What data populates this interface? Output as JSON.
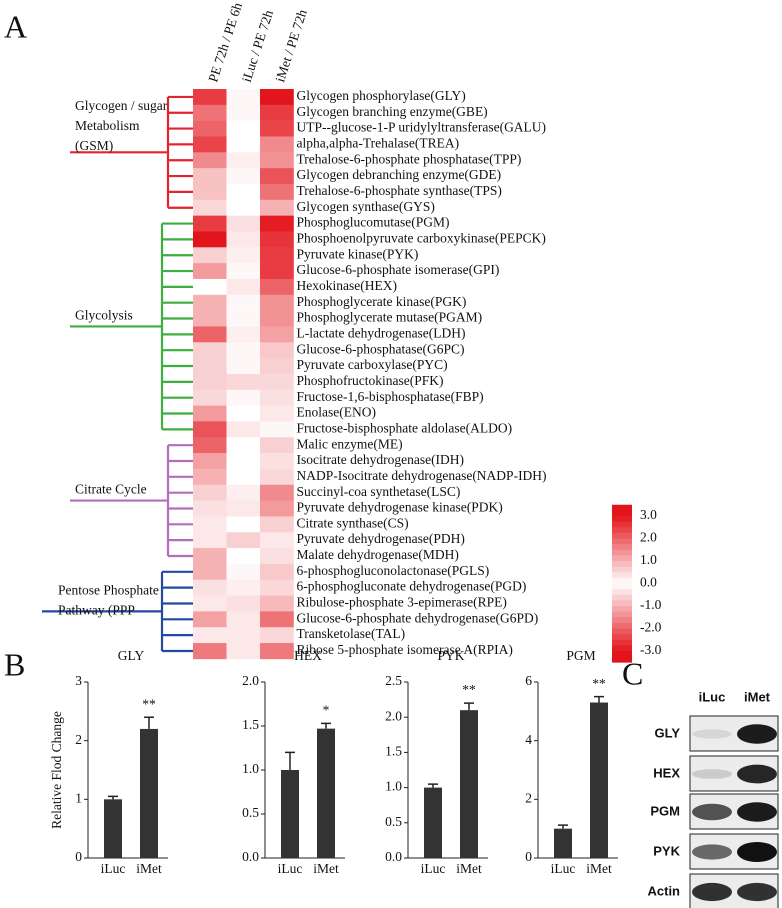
{
  "panel_labels": [
    "A",
    "B",
    "C"
  ],
  "chart_data": [
    {
      "type": "heatmap",
      "columns": [
        "PE 72h / PE 6h",
        "iLuc / PE 72h",
        "iMet / PE 72h"
      ],
      "clim": [
        -3,
        3
      ],
      "colorbar_ticks": [
        {
          "value": 3,
          "label": "3.0"
        },
        {
          "value": 2,
          "label": "2.0"
        },
        {
          "value": 1,
          "label": "1.0"
        },
        {
          "value": 0,
          "label": "0.0"
        },
        {
          "value": -1,
          "label": "-1.0"
        },
        {
          "value": -2,
          "label": "-2.0"
        },
        {
          "value": -3,
          "label": "-3.0"
        }
      ],
      "groups": [
        {
          "label_lines": [
            "Glycogen / sugar",
            "Metabolism",
            "(GSM)"
          ],
          "color": "#e0262b",
          "rows": [
            {
              "label": "Glycogen phosphorylase(GLY)",
              "values": [
                -2.5,
                0.1,
                3.0
              ]
            },
            {
              "label": "Glycogen branching enzyme(GBE)",
              "values": [
                -1.8,
                0.1,
                2.5
              ]
            },
            {
              "label": "UTP--glucose-1-P uridylyltransferase(GALU)",
              "values": [
                -2.0,
                0,
                2.4
              ]
            },
            {
              "label": "alpha,alpha-Trehalase(TREA)",
              "values": [
                -2.4,
                0,
                1.5
              ]
            },
            {
              "label": "Trehalose-6-phosphate phosphatase(TPP)",
              "values": [
                -1.5,
                0.2,
                1.4
              ]
            },
            {
              "label": "Glycogen debranching enzyme(GDE)",
              "values": [
                -0.8,
                0.1,
                2.2
              ]
            },
            {
              "label": "Trehalose-6-phosphate synthase(TPS)",
              "values": [
                -0.8,
                0,
                1.8
              ]
            },
            {
              "label": "Glycogen synthase(GYS)",
              "values": [
                -0.5,
                0,
                1.0
              ]
            }
          ]
        },
        {
          "label_lines": [
            "Glycolysis"
          ],
          "color": "#3fae3f",
          "rows": [
            {
              "label": "Phosphoglucomutase(PGM)",
              "values": [
                -2.5,
                0.4,
                2.9
              ]
            },
            {
              "label": "Phosphoenolpyruvate carboxykinase(PEPCK)",
              "values": [
                -3.0,
                -0.3,
                2.6
              ]
            },
            {
              "label": "Pyruvate kinase(PYK)",
              "values": [
                -0.6,
                0.2,
                2.5
              ]
            },
            {
              "label": "Glucose-6-phosphate isomerase(GPI)",
              "values": [
                -1.3,
                0.1,
                2.5
              ]
            },
            {
              "label": "Hexokinase(HEX)",
              "values": [
                0,
                -0.3,
                2.0
              ]
            },
            {
              "label": "Phosphoglycerate kinase(PGK)",
              "values": [
                -1.0,
                0.1,
                1.4
              ]
            },
            {
              "label": "Phosphoglycerate mutase(PGAM)",
              "values": [
                -1.0,
                0.1,
                1.4
              ]
            },
            {
              "label": "L-lactate dehydrogenase(LDH)",
              "values": [
                -2.0,
                0.2,
                1.2
              ]
            },
            {
              "label": "Glucose-6-phosphatase(G6PC)",
              "values": [
                -0.6,
                0.1,
                0.7
              ]
            },
            {
              "label": "Pyruvate carboxylase(PYC)",
              "values": [
                -0.6,
                0.1,
                0.6
              ]
            },
            {
              "label": "Phosphofructokinase(PFK)",
              "values": [
                -0.6,
                -0.5,
                0.5
              ]
            },
            {
              "label": "Fructose-1,6-bisphosphatase(FBP)",
              "values": [
                0.5,
                0.1,
                0.4
              ]
            },
            {
              "label": "Enolase(ENO)",
              "values": [
                1.3,
                0,
                0.3
              ]
            },
            {
              "label": "Fructose-bisphosphate aldolase(ALDO)",
              "values": [
                2.2,
                0.3,
                0.1
              ]
            }
          ]
        },
        {
          "label_lines": [
            "Citrate Cycle"
          ],
          "color": "#b56cbf",
          "rows": [
            {
              "label": "Malic enzyme(ME)",
              "values": [
                -2.0,
                0,
                0.6
              ]
            },
            {
              "label": "Isocitrate dehydrogenase(IDH)",
              "values": [
                -1.2,
                0,
                0.4
              ]
            },
            {
              "label": "NADP-Isocitrate dehydrogenase(NADP-IDH)",
              "values": [
                -1.0,
                0,
                0.5
              ]
            },
            {
              "label": "Succinyl-coa synthetase(LSC)",
              "values": [
                -0.6,
                0.2,
                1.5
              ]
            },
            {
              "label": "Pyruvate dehydrogenase kinase(PDK)",
              "values": [
                -0.4,
                0.3,
                1.3
              ]
            },
            {
              "label": "Citrate synthase(CS)",
              "values": [
                0.3,
                0,
                0.6
              ]
            },
            {
              "label": "Pyruvate dehydrogenase(PDH)",
              "values": [
                0.3,
                -0.6,
                0.3
              ]
            },
            {
              "label": "Malate dehydrogenase(MDH)",
              "values": [
                1.0,
                0,
                0.4
              ]
            }
          ]
        },
        {
          "label_lines": [
            "Pentose Phosphate",
            "Pathway (PPP"
          ],
          "color": "#2548a0",
          "rows": [
            {
              "label": "6-phosphogluconolactonase(PGLS)",
              "values": [
                -1.0,
                0.1,
                0.7
              ]
            },
            {
              "label": "6-phosphogluconate dehydrogenase(PGD)",
              "values": [
                -0.4,
                0.2,
                0.5
              ]
            },
            {
              "label": "Ribulose-phosphate 3-epimerase(RPE)",
              "values": [
                -0.3,
                -0.4,
                0.9
              ]
            },
            {
              "label": "Glucose-6-phosphate dehydrogenase(G6PD)",
              "values": [
                1.2,
                0.3,
                1.8
              ]
            },
            {
              "label": "Transketolase(TAL)",
              "values": [
                0.3,
                -0.3,
                0.5
              ]
            },
            {
              "label": "Ribose 5-phosphate isomerase A(RPIA)",
              "values": [
                1.7,
                0.3,
                -1.7
              ]
            }
          ]
        }
      ]
    },
    {
      "type": "bar",
      "title": "GLY",
      "ylabel": "Relative Flod Change",
      "categories": [
        "iLuc",
        "iMet"
      ],
      "values": [
        1.0,
        2.2
      ],
      "errors": [
        0.05,
        0.2
      ],
      "color": "#333333",
      "ylim": [
        0,
        3
      ],
      "yticks": [
        0,
        1,
        2,
        3
      ],
      "annotations": [
        {
          "x": "iMet",
          "text": "**"
        }
      ]
    },
    {
      "type": "bar",
      "title": "HEX",
      "categories": [
        "iLuc",
        "iMet"
      ],
      "values": [
        1.0,
        1.47
      ],
      "errors": [
        0.2,
        0.06
      ],
      "color": "#333333",
      "ylim": [
        0,
        2
      ],
      "yticks": [
        {
          "value": 0,
          "label": "0.0"
        },
        {
          "value": 0.5,
          "label": "0.5"
        },
        {
          "value": 1,
          "label": "1.0"
        },
        {
          "value": 1.5,
          "label": "1.5"
        },
        {
          "value": 2,
          "label": "2.0"
        }
      ],
      "annotations": [
        {
          "x": "iMet",
          "text": "*"
        }
      ]
    },
    {
      "type": "bar",
      "title": "PYK",
      "categories": [
        "iLuc",
        "iMet"
      ],
      "values": [
        1.0,
        2.1
      ],
      "errors": [
        0.05,
        0.1
      ],
      "color": "#333333",
      "ylim": [
        0,
        2.5
      ],
      "yticks": [
        {
          "value": 0,
          "label": "0.0"
        },
        0.5,
        {
          "value": 1,
          "label": "1.0"
        },
        1.5,
        {
          "value": 2,
          "label": "2.0"
        },
        2.5
      ],
      "annotations": [
        {
          "x": "iMet",
          "text": "**"
        }
      ]
    },
    {
      "type": "bar",
      "title": "PGM",
      "categories": [
        "iLuc",
        "iMet"
      ],
      "values": [
        1.0,
        5.3
      ],
      "errors": [
        0.12,
        0.2
      ],
      "color": "#333333",
      "ylim": [
        0,
        6
      ],
      "yticks": [
        0,
        2,
        4,
        6
      ],
      "annotations": [
        {
          "x": "iMet",
          "text": "**"
        }
      ]
    }
  ],
  "blot": {
    "columns": [
      "iLuc",
      "iMet"
    ],
    "rows": [
      "GLY",
      "HEX",
      "PGM",
      "PYK",
      "Actin"
    ]
  }
}
